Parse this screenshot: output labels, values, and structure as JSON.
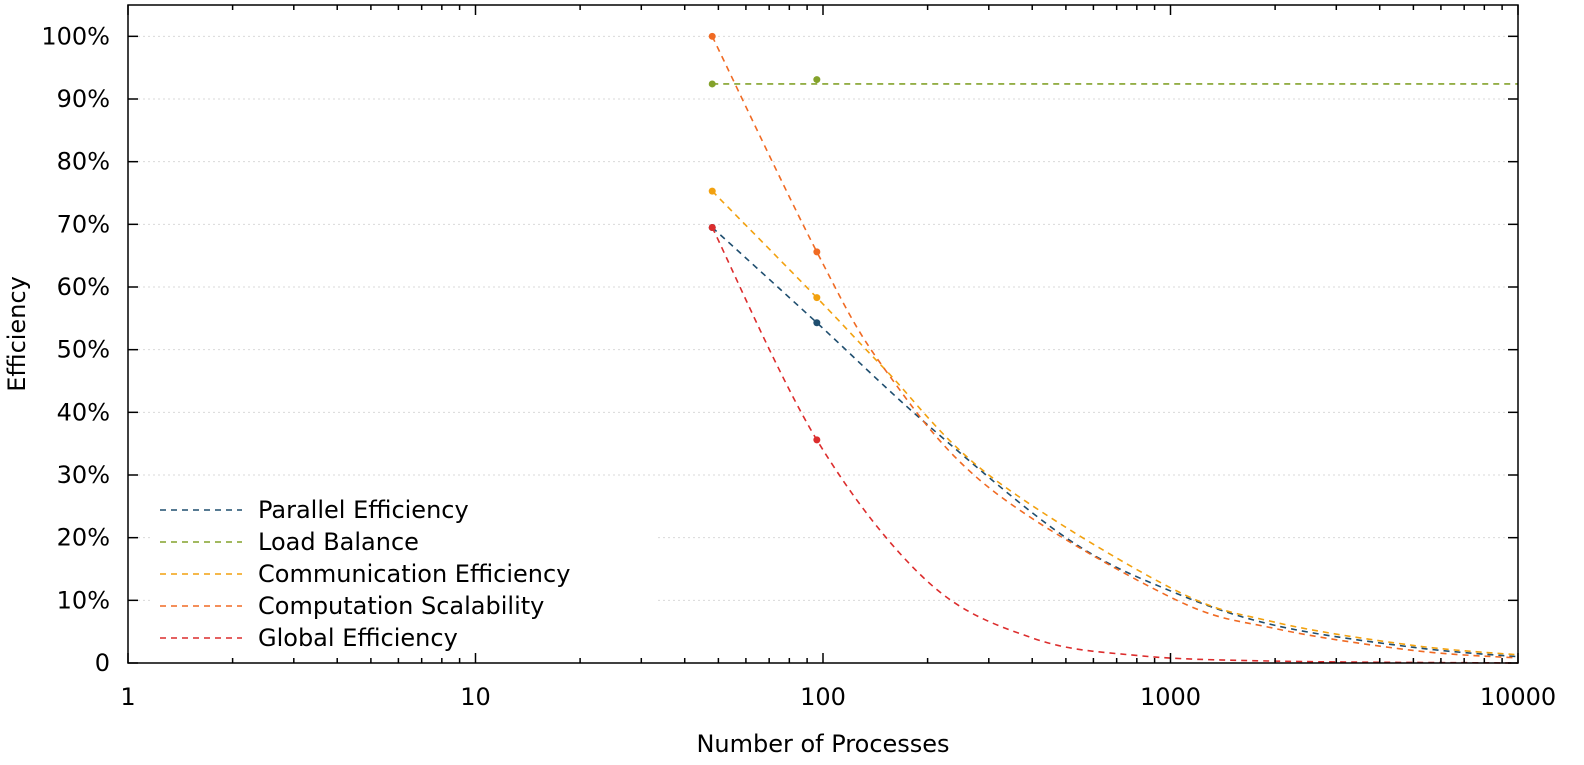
{
  "chart_data": {
    "type": "line",
    "xlabel": "Number of Processes",
    "ylabel": "Efficiency",
    "x_scale": "log",
    "xlim": [
      1,
      10000
    ],
    "ylim": [
      0,
      105
    ],
    "grid": "horizontal dotted",
    "legend_position": "bottom-left",
    "x_ticks": [
      {
        "value": 1,
        "label": "1"
      },
      {
        "value": 10,
        "label": "10"
      },
      {
        "value": 100,
        "label": "100"
      },
      {
        "value": 1000,
        "label": "1000"
      },
      {
        "value": 10000,
        "label": "10000"
      }
    ],
    "y_ticks": [
      {
        "value": 0,
        "label": "0"
      },
      {
        "value": 10,
        "label": "10%"
      },
      {
        "value": 20,
        "label": "20%"
      },
      {
        "value": 30,
        "label": "30%"
      },
      {
        "value": 40,
        "label": "40%"
      },
      {
        "value": 50,
        "label": "50%"
      },
      {
        "value": 60,
        "label": "60%"
      },
      {
        "value": 70,
        "label": "70%"
      },
      {
        "value": 80,
        "label": "80%"
      },
      {
        "value": 90,
        "label": "90%"
      },
      {
        "value": 100,
        "label": "100%"
      }
    ],
    "series": [
      {
        "name": "Parallel Efficiency",
        "color": "#1f4e6f",
        "points": [
          {
            "x": 48,
            "y": 69.5
          },
          {
            "x": 96,
            "y": 54.3
          }
        ],
        "fit": [
          [
            48,
            69.5
          ],
          [
            96,
            54.3
          ],
          [
            200,
            38.0
          ],
          [
            500,
            20.0
          ],
          [
            1000,
            11.5
          ],
          [
            2000,
            6.0
          ],
          [
            5000,
            2.5
          ],
          [
            10000,
            1.0
          ]
        ]
      },
      {
        "name": "Load Balance",
        "color": "#84a22b",
        "points": [
          {
            "x": 48,
            "y": 92.4
          },
          {
            "x": 96,
            "y": 93.1
          }
        ],
        "fit": [
          [
            48,
            92.4
          ],
          [
            10000,
            92.4
          ]
        ]
      },
      {
        "name": "Communication Efficiency",
        "color": "#f2a10f",
        "points": [
          {
            "x": 48,
            "y": 75.3
          },
          {
            "x": 96,
            "y": 58.3
          }
        ],
        "fit": [
          [
            48,
            75.3
          ],
          [
            96,
            58.3
          ],
          [
            150,
            47.0
          ],
          [
            300,
            30.0
          ],
          [
            1000,
            12.0
          ],
          [
            2000,
            6.5
          ],
          [
            5000,
            2.8
          ],
          [
            10000,
            1.3
          ]
        ]
      },
      {
        "name": "Computation Scalability",
        "color": "#f06a23",
        "points": [
          {
            "x": 48,
            "y": 100.0
          },
          {
            "x": 96,
            "y": 65.6
          }
        ],
        "fit": [
          [
            48,
            100.0
          ],
          [
            96,
            65.6
          ],
          [
            150,
            47.0
          ],
          [
            300,
            28.0
          ],
          [
            1000,
            10.5
          ],
          [
            2000,
            5.5
          ],
          [
            5000,
            2.0
          ],
          [
            10000,
            0.8
          ]
        ]
      },
      {
        "name": "Global Efficiency",
        "color": "#dc2d2d",
        "points": [
          {
            "x": 48,
            "y": 69.5
          },
          {
            "x": 96,
            "y": 35.6
          }
        ],
        "fit": [
          [
            48,
            69.5
          ],
          [
            96,
            35.6
          ],
          [
            200,
            13.0
          ],
          [
            400,
            4.0
          ],
          [
            800,
            1.2
          ],
          [
            2000,
            0.3
          ],
          [
            10000,
            0.0
          ]
        ]
      }
    ]
  }
}
